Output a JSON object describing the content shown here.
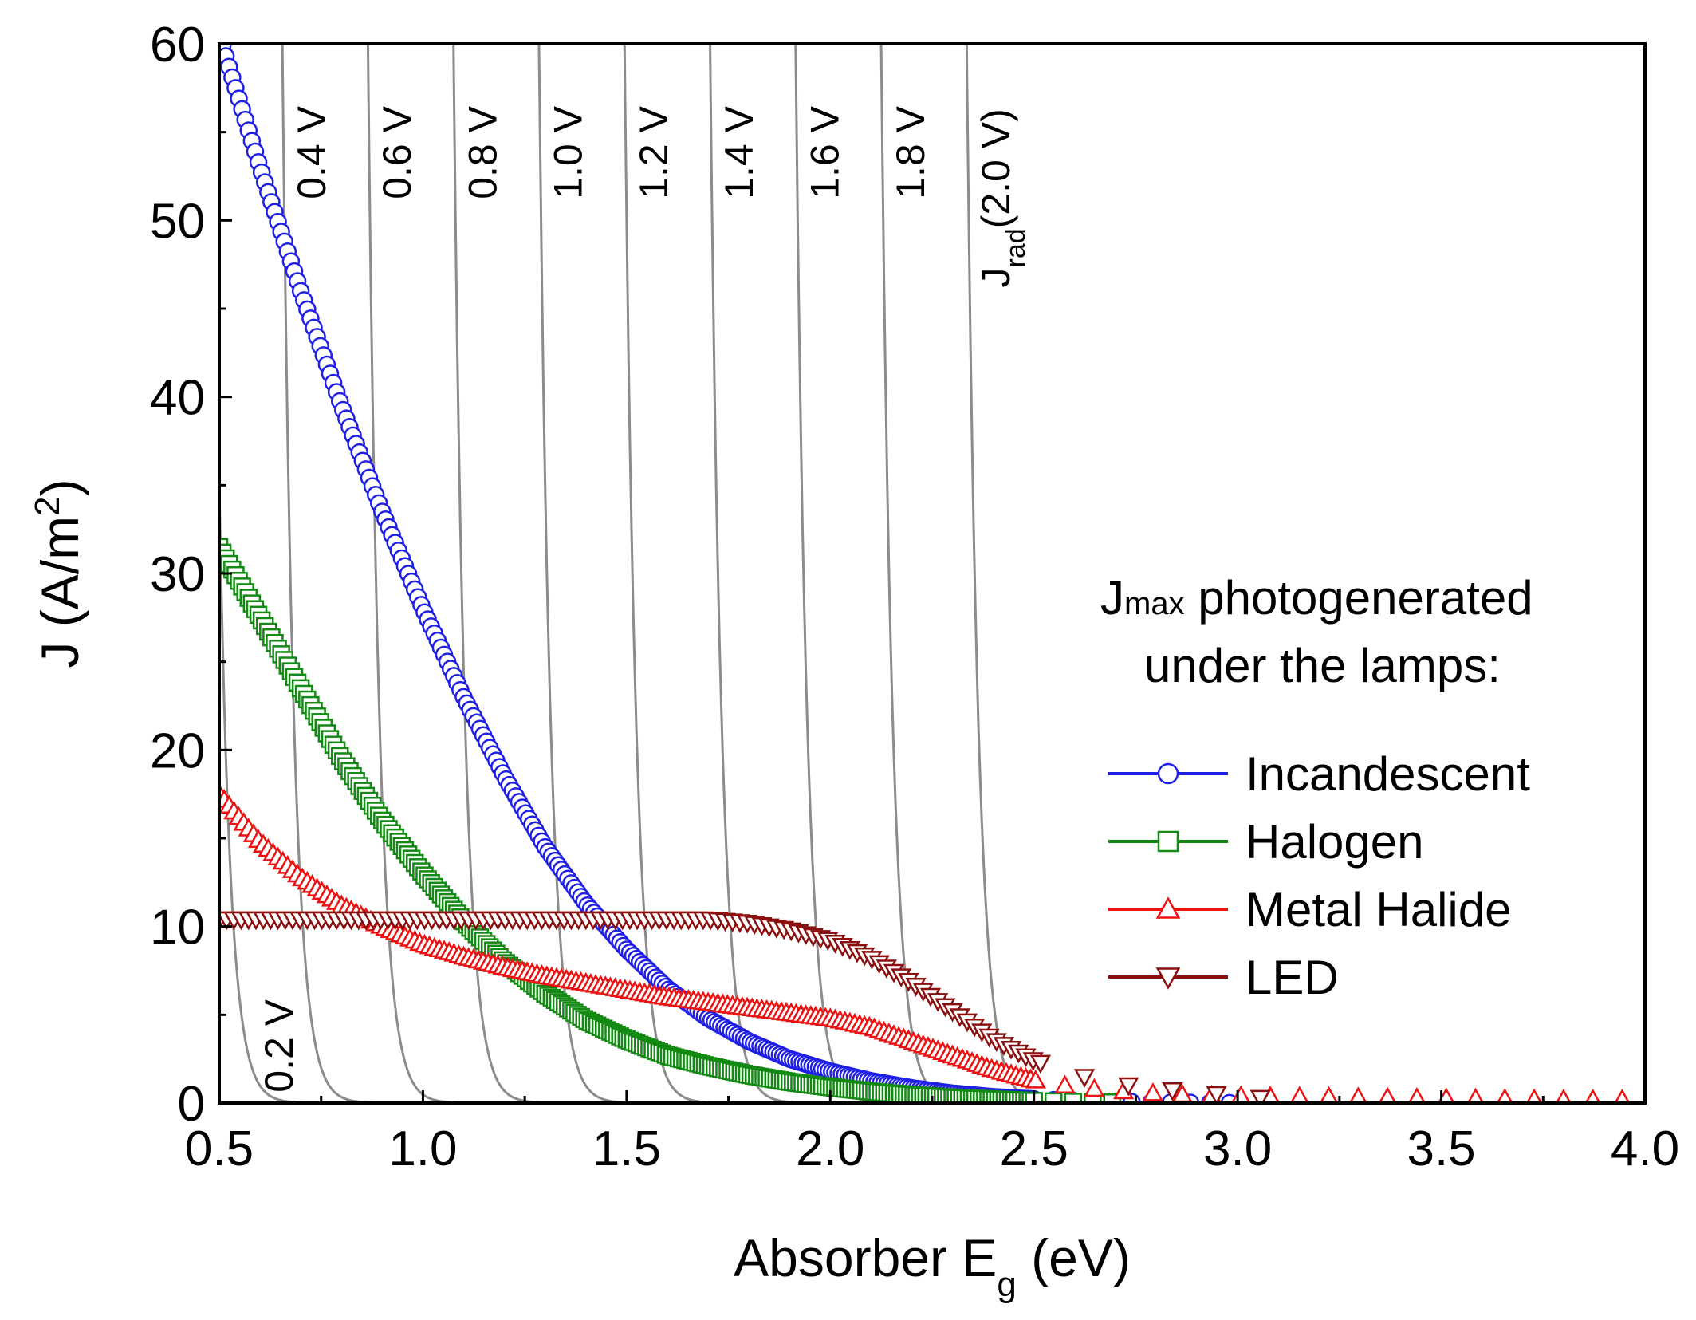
{
  "chart_data": {
    "type": "scatter",
    "xlabel": {
      "main": "Absorber E",
      "sub": "g",
      "tail": " (eV)"
    },
    "ylabel": {
      "main": "J (A/m",
      "sup": "2",
      "tail": ")"
    },
    "xlim": [
      0.5,
      4.0
    ],
    "ylim": [
      0,
      60
    ],
    "x_ticks": [
      0.5,
      1.0,
      1.5,
      2.0,
      2.5,
      3.0,
      3.5,
      4.0
    ],
    "x_tick_labels": [
      "0.5",
      "1.0",
      "1.5",
      "2.0",
      "2.5",
      "3.0",
      "3.5",
      "4.0"
    ],
    "y_ticks": [
      0,
      10,
      20,
      30,
      40,
      50,
      60
    ],
    "y_tick_labels": [
      "0",
      "10",
      "20",
      "30",
      "40",
      "50",
      "60"
    ],
    "grid": false,
    "voltage_curves": [
      {
        "label": "0.2 V",
        "v": 0.2,
        "color": "#8c8c8c"
      },
      {
        "label": "0.4 V",
        "v": 0.4,
        "color": "#8c8c8c"
      },
      {
        "label": "0.6 V",
        "v": 0.6,
        "color": "#8c8c8c"
      },
      {
        "label": "0.8 V",
        "v": 0.8,
        "color": "#8c8c8c"
      },
      {
        "label": "1.0 V",
        "v": 1.0,
        "color": "#8c8c8c"
      },
      {
        "label": "1.2 V",
        "v": 1.2,
        "color": "#8c8c8c"
      },
      {
        "label": "1.4 V",
        "v": 1.4,
        "color": "#8c8c8c"
      },
      {
        "label": "1.6 V",
        "v": 1.6,
        "color": "#8c8c8c"
      },
      {
        "label": "1.8 V",
        "v": 1.8,
        "color": "#8c8c8c"
      },
      {
        "label": "(2.0 V)",
        "v": 2.0,
        "color": "#8c8c8c",
        "prefix": "J",
        "prefix_sub": "rad"
      }
    ],
    "legend": {
      "title_line1_main": "J",
      "title_line1_sub": "max",
      "title_line1_tail": " photogenerated",
      "title_line2": "under the lamps:",
      "position": "right-middle"
    },
    "series": [
      {
        "name": "Incandescent",
        "marker": "circle",
        "color": "#1f1fe6",
        "x": [
          0.5,
          0.6,
          0.7,
          0.8,
          0.9,
          1.0,
          1.1,
          1.2,
          1.3,
          1.4,
          1.5,
          1.6,
          1.7,
          1.8,
          1.9,
          2.0,
          2.1,
          2.2,
          2.3,
          2.4,
          2.5,
          2.6,
          2.7,
          2.8,
          2.9,
          3.0
        ],
        "y": [
          60.5,
          53,
          46,
          39.5,
          33.5,
          28,
          23,
          18.5,
          14.5,
          11.3,
          8.7,
          6.5,
          4.8,
          3.5,
          2.5,
          1.8,
          1.25,
          0.85,
          0.55,
          0.35,
          0.22,
          0.13,
          0.08,
          0.04,
          0.02,
          0.0
        ]
      },
      {
        "name": "Halogen",
        "marker": "square",
        "color": "#138a13",
        "x": [
          0.5,
          0.6,
          0.7,
          0.8,
          0.9,
          1.0,
          1.1,
          1.2,
          1.3,
          1.4,
          1.5,
          1.6,
          1.7,
          1.8,
          1.9,
          2.0,
          2.1,
          2.2,
          2.3,
          2.4,
          2.5,
          2.6,
          2.7
        ],
        "y": [
          31.5,
          27.5,
          23.5,
          19.5,
          16,
          13,
          10.3,
          8,
          6.2,
          4.7,
          3.6,
          2.7,
          2.1,
          1.6,
          1.2,
          0.9,
          0.65,
          0.45,
          0.3,
          0.2,
          0.12,
          0.07,
          0.03
        ]
      },
      {
        "name": "Metal Halide",
        "marker": "triangle-up",
        "color": "#ee1111",
        "x": [
          0.5,
          0.6,
          0.7,
          0.8,
          0.9,
          1.0,
          1.1,
          1.2,
          1.3,
          1.4,
          1.5,
          1.6,
          1.7,
          1.8,
          1.9,
          2.0,
          2.1,
          2.2,
          2.3,
          2.4,
          2.5,
          2.6,
          2.7,
          2.8,
          2.9,
          3.0,
          3.2,
          3.4,
          3.6,
          3.8,
          4.0
        ],
        "y": [
          17.5,
          14.8,
          12.8,
          11.2,
          10.0,
          9.0,
          8.3,
          7.7,
          7.2,
          6.8,
          6.4,
          6.0,
          5.7,
          5.4,
          5.1,
          4.8,
          4.3,
          3.5,
          2.7,
          1.9,
          1.3,
          0.9,
          0.7,
          0.55,
          0.45,
          0.4,
          0.35,
          0.3,
          0.25,
          0.2,
          0.2
        ]
      },
      {
        "name": "LED",
        "marker": "triangle-down",
        "color": "#8b0f0f",
        "x": [
          0.5,
          0.6,
          0.7,
          0.8,
          0.9,
          1.0,
          1.1,
          1.2,
          1.3,
          1.4,
          1.5,
          1.6,
          1.7,
          1.8,
          1.9,
          2.0,
          2.1,
          2.2,
          2.3,
          2.4,
          2.5,
          2.6,
          2.7,
          2.8,
          2.9,
          3.0,
          3.1
        ],
        "y": [
          10.4,
          10.4,
          10.4,
          10.4,
          10.4,
          10.4,
          10.4,
          10.4,
          10.4,
          10.4,
          10.4,
          10.4,
          10.4,
          10.2,
          9.8,
          9.2,
          8.2,
          6.8,
          5.2,
          3.6,
          2.4,
          1.6,
          1.1,
          0.8,
          0.6,
          0.4,
          0.2
        ]
      }
    ]
  }
}
